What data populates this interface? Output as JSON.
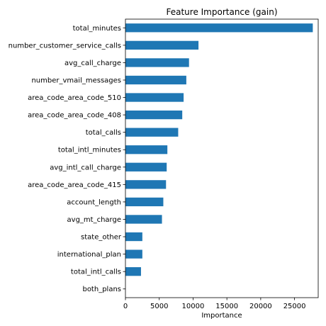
{
  "chart_data": {
    "type": "bar",
    "orientation": "horizontal",
    "title": "Feature Importance (gain)",
    "xlabel": "Importance",
    "ylabel": "",
    "categories": [
      "total_minutes",
      "number_customer_service_calls",
      "avg_call_charge",
      "number_vmail_messages",
      "area_code_area_code_510",
      "area_code_area_code_408",
      "total_calls",
      "total_intl_minutes",
      "avg_intl_call_charge",
      "area_code_area_code_415",
      "account_length",
      "avg_mt_charge",
      "state_other",
      "international_plan",
      "total_intl_calls",
      "both_plans"
    ],
    "values": [
      27700,
      10800,
      9400,
      9000,
      8600,
      8400,
      7800,
      6200,
      6100,
      6000,
      5600,
      5400,
      2500,
      2500,
      2300,
      0
    ],
    "xlim": [
      0,
      28500
    ],
    "xticks": [
      0,
      5000,
      10000,
      15000,
      20000,
      25000
    ],
    "xtick_labels": [
      "0",
      "5000",
      "10000",
      "15000",
      "20000",
      "25000"
    ],
    "bar_color": "#1f77b4",
    "grid": false,
    "legend": "none"
  }
}
